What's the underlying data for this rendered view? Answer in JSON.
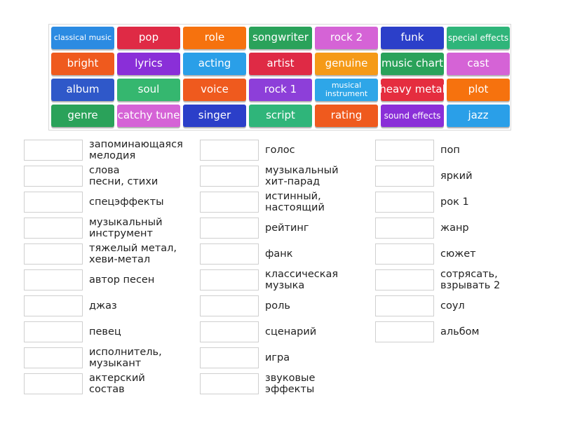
{
  "colors": {
    "blue": "#2c8be2",
    "red": "#df2a45",
    "orange": "#f6720e",
    "green": "#2aa25a",
    "pink": "#d563d6",
    "navy": "#2b3fc9",
    "teal": "#2fb57a",
    "lightblue": "#2a9fe8",
    "purple": "#8a2fd8",
    "sky": "#2ea6e8",
    "vermilion": "#ef5a1e",
    "darkblue": "#2f58c9",
    "mint": "#35b76f",
    "crimson": "#e52d3f",
    "gold": "#f59a17",
    "violet": "#8d3fd9"
  },
  "tiles": [
    {
      "label": "classical music",
      "color": "#2c8be2",
      "size": "xsmall"
    },
    {
      "label": "pop",
      "color": "#df2a45",
      "size": ""
    },
    {
      "label": "role",
      "color": "#f6720e",
      "size": ""
    },
    {
      "label": "songwriter",
      "color": "#2aa25a",
      "size": ""
    },
    {
      "label": "rock 2",
      "color": "#d563d6",
      "size": ""
    },
    {
      "label": "funk",
      "color": "#2b3fc9",
      "size": ""
    },
    {
      "label": "special effects",
      "color": "#2fb57a",
      "size": "small"
    },
    {
      "label": "bright",
      "color": "#ef5a1e",
      "size": ""
    },
    {
      "label": "lyrics",
      "color": "#8a2fd8",
      "size": ""
    },
    {
      "label": "acting",
      "color": "#2a9fe8",
      "size": ""
    },
    {
      "label": "artist",
      "color": "#df2a45",
      "size": ""
    },
    {
      "label": "genuine",
      "color": "#f59a17",
      "size": ""
    },
    {
      "label": "music chart",
      "color": "#2aa25a",
      "size": ""
    },
    {
      "label": "cast",
      "color": "#d563d6",
      "size": ""
    },
    {
      "label": "album",
      "color": "#2f58c9",
      "size": ""
    },
    {
      "label": "soul",
      "color": "#35b76f",
      "size": ""
    },
    {
      "label": "voice",
      "color": "#ef5a1e",
      "size": ""
    },
    {
      "label": "rock 1",
      "color": "#8d3fd9",
      "size": ""
    },
    {
      "label": "musical instrument",
      "color": "#2ea6e8",
      "size": "xsmall"
    },
    {
      "label": "heavy metal",
      "color": "#e52d3f",
      "size": ""
    },
    {
      "label": "plot",
      "color": "#f6720e",
      "size": ""
    },
    {
      "label": "genre",
      "color": "#2aa25a",
      "size": ""
    },
    {
      "label": "catchy tune",
      "color": "#d563d6",
      "size": ""
    },
    {
      "label": "singer",
      "color": "#2b3fc9",
      "size": ""
    },
    {
      "label": "script",
      "color": "#2fb57a",
      "size": ""
    },
    {
      "label": "rating",
      "color": "#ef5a1e",
      "size": ""
    },
    {
      "label": "sound effects",
      "color": "#8a2fd8",
      "size": "small"
    },
    {
      "label": "jazz",
      "color": "#2a9fe8",
      "size": ""
    }
  ],
  "columns": [
    {
      "clues": [
        "запоминающаяся\nмелодия",
        "слова\nпесни, стихи",
        "спецэффекты",
        "музыкальный\nинструмент",
        "тяжелый метал,\nхеви-метал",
        "автор песен",
        "джаз",
        "певец",
        "исполнитель,\nмузыкант",
        "актерский\nсостав"
      ]
    },
    {
      "clues": [
        "голос",
        "музыкальный\nхит-парад",
        "истинный,\nнастоящий",
        "рейтинг",
        "фанк",
        "классическая\nмузыка",
        "роль",
        "сценарий",
        "игра",
        "звуковые\nэффекты"
      ]
    },
    {
      "clues": [
        "поп",
        "яркий",
        "рок 1",
        "жанр",
        "сюжет",
        "сотрясать,\nвзрывать 2",
        "соул",
        "альбом"
      ]
    }
  ]
}
